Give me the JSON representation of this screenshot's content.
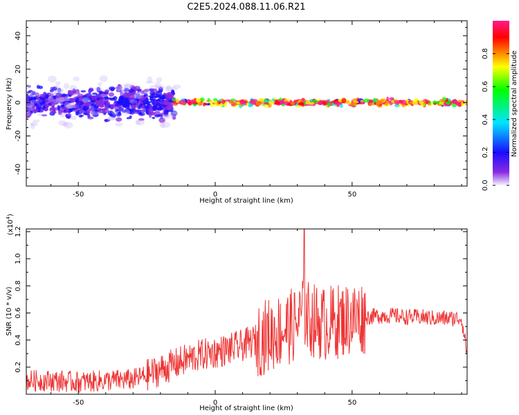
{
  "title": "C2E5.2024.088.11.06.R21",
  "chart_data": [
    {
      "type": "heatmap",
      "xlabel": "Height of straight line (km)",
      "ylabel": "Frequency (Hz)",
      "xlim": [
        -69,
        92
      ],
      "ylim": [
        -50,
        49
      ],
      "x_ticks": [
        -50,
        0,
        50
      ],
      "y_ticks": [
        -40,
        -20,
        0,
        20,
        40
      ],
      "colorbar": {
        "label": "Normalized spectral amplitude",
        "range": [
          0.0,
          1.0
        ],
        "ticks": [
          0.0,
          0.2,
          0.4,
          0.6,
          0.8
        ],
        "tick_labels": [
          "0.0",
          "0.2",
          "0.4",
          "0.6",
          "0.8"
        ],
        "colormap": [
          "#f5f5ff",
          "#8a2be2",
          "#1a0dff",
          "#00e5ff",
          "#00ff00",
          "#ffff00",
          "#ff8c00",
          "#ff0000",
          "#ff1a8c"
        ]
      },
      "features": [
        {
          "x_range": [
            -69,
            -15
          ],
          "freq_center": 0,
          "freq_spread": 6,
          "amplitude": 0.25,
          "description_key": "broad"
        },
        {
          "x_range": [
            -15,
            92
          ],
          "freq_center": 0,
          "freq_spread": 1.2,
          "amplitude": 0.85,
          "description_key": "narrow"
        }
      ],
      "grid": false
    },
    {
      "type": "line",
      "xlabel": "Height of straight line (km)",
      "ylabel": "SNR (10 * v/v)",
      "yscale_label": "(x10^4)",
      "xlim": [
        -69,
        92
      ],
      "ylim": [
        0.0,
        1.22
      ],
      "x_ticks": [
        -50,
        0,
        50
      ],
      "y_ticks": [
        0.2,
        0.4,
        0.6,
        0.8,
        1.0,
        1.2
      ],
      "series": [
        {
          "color": "#ee3333",
          "x": [
            -69,
            -60,
            -50,
            -40,
            -30,
            -25,
            -20,
            -15,
            -10,
            -5,
            0,
            5,
            10,
            15,
            20,
            25,
            30,
            32,
            35,
            40,
            45,
            50,
            55,
            60,
            65,
            70,
            75,
            80,
            85,
            90,
            92
          ],
          "y": [
            0.1,
            0.1,
            0.09,
            0.1,
            0.11,
            0.14,
            0.18,
            0.22,
            0.26,
            0.29,
            0.31,
            0.33,
            0.36,
            0.4,
            0.44,
            0.48,
            0.52,
            0.6,
            0.55,
            0.52,
            0.54,
            0.56,
            0.57,
            0.58,
            0.58,
            0.57,
            0.57,
            0.56,
            0.56,
            0.56,
            0.3
          ]
        }
      ],
      "grid": false
    }
  ]
}
